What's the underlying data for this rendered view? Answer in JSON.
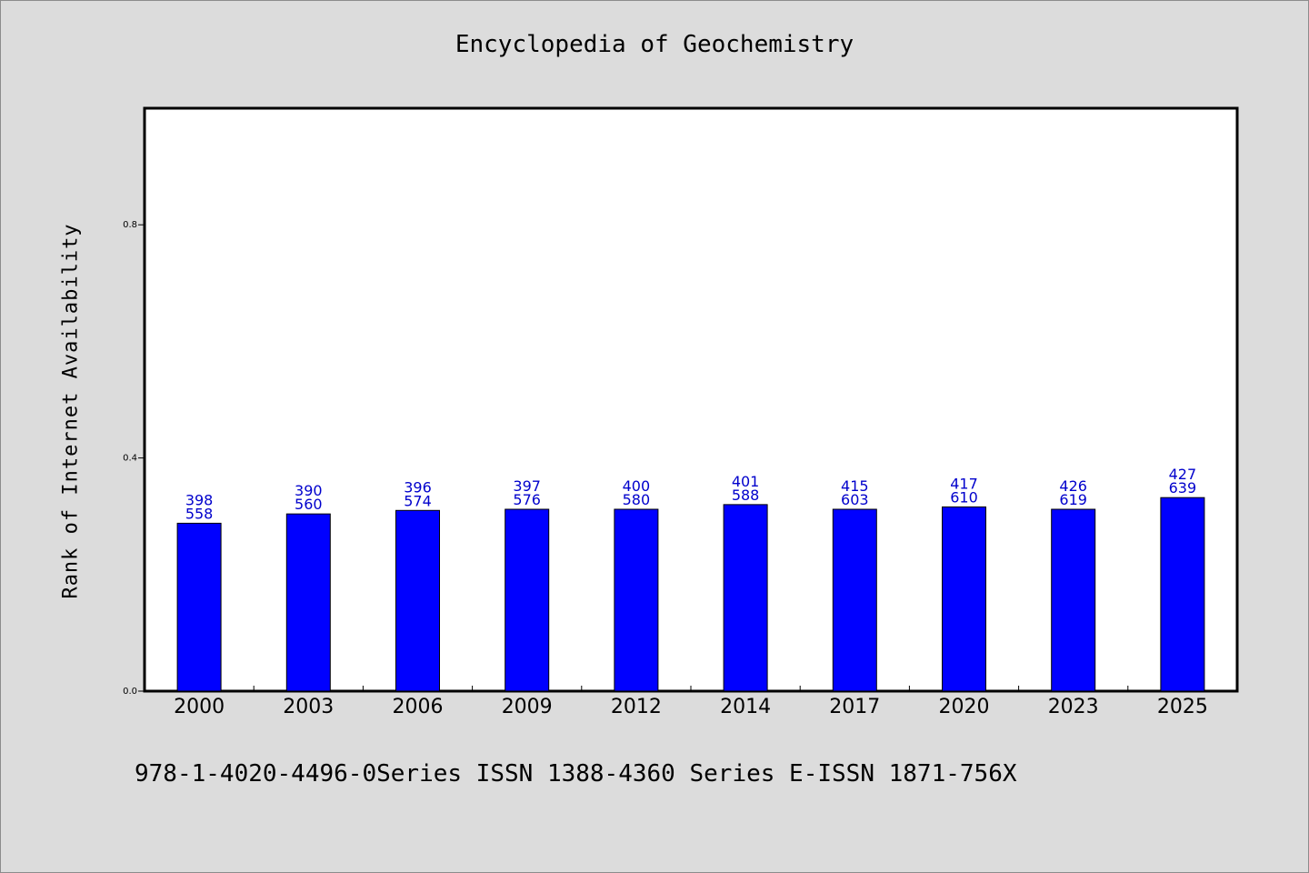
{
  "chart_data": {
    "type": "bar",
    "title": "Encyclopedia of Geochemistry",
    "ylabel": "Rank of Internet Availability",
    "xlabel": "",
    "ylim": [
      0,
      1
    ],
    "yticks": [
      "0.0",
      "0.4",
      "0.8"
    ],
    "ytick_values": [
      0,
      0.4,
      0.8
    ],
    "categories": [
      "2000",
      "2003",
      "2006",
      "2009",
      "2012",
      "2014",
      "2017",
      "2020",
      "2023",
      "2025"
    ],
    "values": [
      0.288,
      0.304,
      0.31,
      0.312,
      0.312,
      0.32,
      0.312,
      0.316,
      0.312,
      0.332
    ],
    "labels_top": [
      "398",
      "390",
      "396",
      "397",
      "400",
      "401",
      "415",
      "417",
      "426",
      "427"
    ],
    "labels_bottom": [
      "558",
      "560",
      "574",
      "576",
      "580",
      "588",
      "603",
      "610",
      "619",
      "639"
    ],
    "bar_color": "#0000ff",
    "label_color": "#0000cc",
    "grid": false
  },
  "footer_text": "978-1-4020-4496-0Series ISSN 1388-4360 Series E-ISSN 1871-756X"
}
